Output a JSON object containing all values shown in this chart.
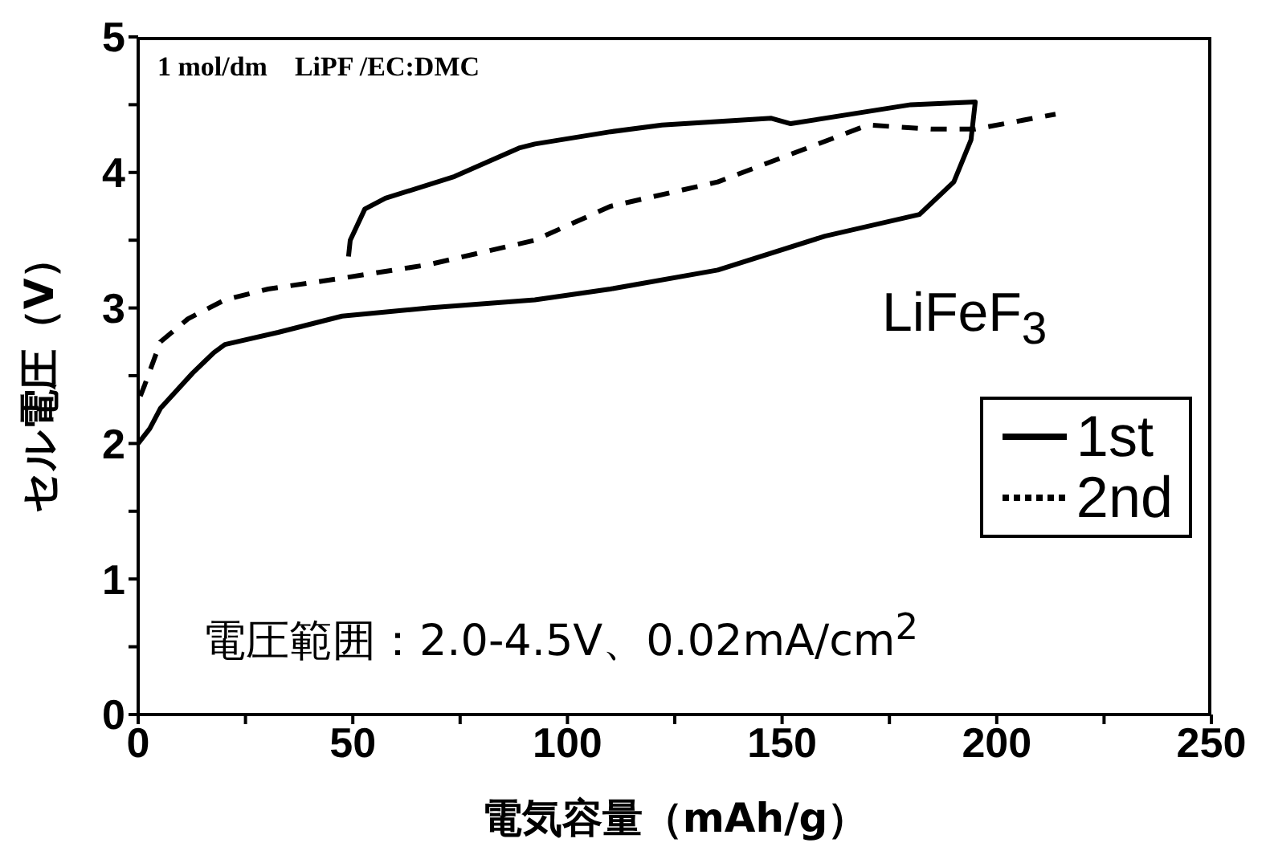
{
  "chart_data": {
    "type": "line",
    "xlabel": "電気容量（mAh/g）",
    "ylabel": "セル電圧（V）",
    "xlim": [
      0,
      250
    ],
    "ylim": [
      0,
      5
    ],
    "xticks": [
      0,
      {
        "value": 25,
        "label": null
      },
      50,
      {
        "value": 75,
        "label": null
      },
      100,
      {
        "value": 125,
        "label": null
      },
      150,
      {
        "value": 175,
        "label": null
      },
      200,
      {
        "value": 225,
        "label": null
      },
      250
    ],
    "yticks": [
      0,
      {
        "value": 0.5,
        "label": null
      },
      1,
      {
        "value": 1.5,
        "label": null
      },
      2,
      {
        "value": 2.5,
        "label": null
      },
      3,
      {
        "value": 3.5,
        "label": null
      },
      4,
      {
        "value": 4.5,
        "label": null
      },
      5
    ],
    "legend": "bottom right",
    "marker": "none",
    "annotations": [
      "1 mol/dm    LiPF /EC:DMC",
      "LiFeF$_{3}$",
      "電圧範囲：2.0-4.5V、0.02mA/cm$^{2}$"
    ],
    "series": [
      {
        "name": "1st",
        "color": "#000000",
        "line_style": "solid",
        "x": [
          0,
          2.7,
          5.2,
          12.7,
          17.6,
          20.2,
          32.6,
          47.5,
          67.7,
          92.4,
          110,
          135,
          160,
          182,
          190,
          194,
          195,
          180,
          152,
          147.5,
          122,
          110,
          92.4,
          88.7,
          73.7,
          57.6,
          52.8,
          49.4,
          49
        ],
        "values": [
          2.0,
          2.11,
          2.26,
          2.52,
          2.67,
          2.73,
          2.82,
          2.94,
          3.0,
          3.06,
          3.14,
          3.28,
          3.53,
          3.69,
          3.93,
          4.24,
          4.52,
          4.5,
          4.36,
          4.4,
          4.35,
          4.3,
          4.21,
          4.18,
          3.97,
          3.81,
          3.73,
          3.5,
          3.38
        ]
      },
      {
        "name": "2nd",
        "color": "#000000",
        "line_style": "dashed",
        "x": [
          0.5,
          1.5,
          5.2,
          11.6,
          20.2,
          30.3,
          47.5,
          67.7,
          92.4,
          110,
          135,
          160,
          170,
          185,
          195,
          213.7
        ],
        "values": [
          2.35,
          2.43,
          2.75,
          2.92,
          3.06,
          3.14,
          3.22,
          3.32,
          3.5,
          3.75,
          3.93,
          4.23,
          4.35,
          4.32,
          4.32,
          4.43
        ]
      }
    ]
  }
}
